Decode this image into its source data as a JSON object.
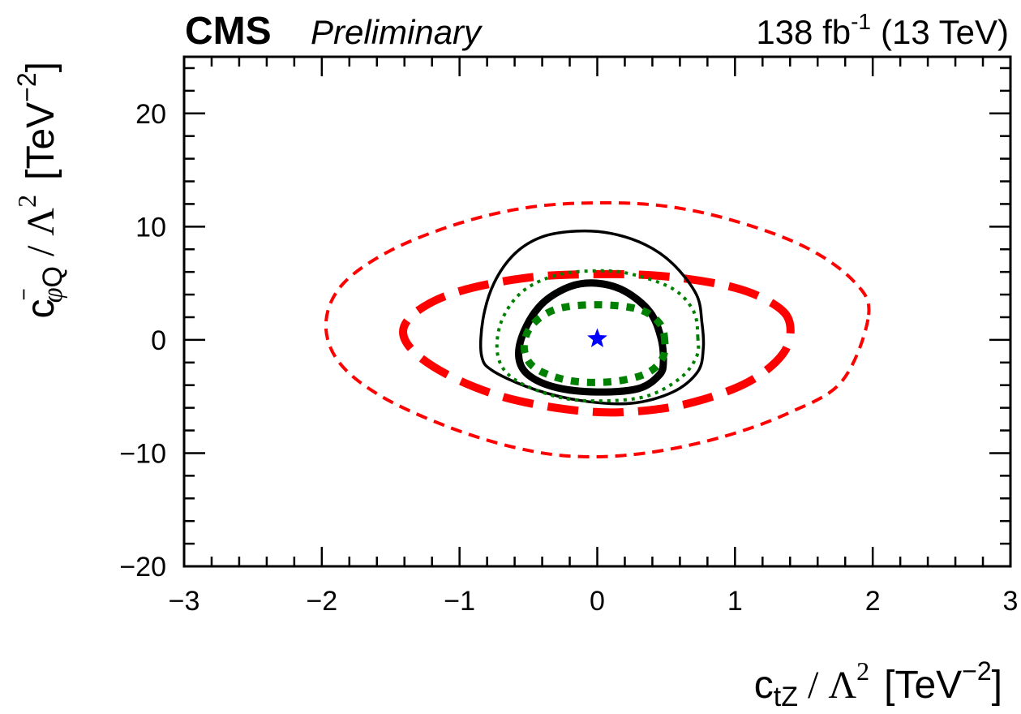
{
  "header": {
    "experiment": "CMS",
    "status": "Preliminary",
    "lumi": "138",
    "lumi_unit": "fb",
    "lumi_exp": "-1",
    "energy": "(13 TeV)"
  },
  "chart_data": {
    "type": "contour",
    "xlim": [
      -3,
      3
    ],
    "ylim": [
      -20,
      25
    ],
    "xticks": [
      -3,
      -2,
      -1,
      0,
      1,
      2,
      3
    ],
    "yticks": [
      -20,
      -10,
      0,
      10,
      20
    ],
    "xtick_labels": [
      "−3",
      "−2",
      "−1",
      "0",
      "1",
      "2",
      "3"
    ],
    "ytick_labels": [
      "−20",
      "−10",
      "0",
      "10",
      "20"
    ],
    "xlabel": {
      "coef": "c",
      "coef_sub": "tZ",
      "slash": "/",
      "lambda": "Λ",
      "lambda_exp": "2",
      "unit_open": "[TeV",
      "unit_exp": "−2",
      "unit_close": "]"
    },
    "ylabel": {
      "coef": "c",
      "coef_bar": "−",
      "coef_sub_phi": "φ",
      "coef_sub_q": "Q",
      "slash": "/",
      "lambda": "Λ",
      "lambda_exp": "2",
      "unit_open": "[TeV",
      "unit_exp": "−2",
      "unit_close": "]"
    },
    "best_fit": {
      "x": 0.0,
      "y": 0.1,
      "color": "#0000ff"
    },
    "contours": [
      {
        "name": "red-dashed-outer",
        "color": "#ff0000",
        "style": "dashed",
        "weight": "thin",
        "points": [
          [
            1.97,
            2.2
          ],
          [
            1.86,
            5.2
          ],
          [
            1.51,
            8.2
          ],
          [
            1.0,
            10.5
          ],
          [
            0.5,
            11.8
          ],
          [
            0.0,
            12.1
          ],
          [
            -0.5,
            11.7
          ],
          [
            -1.0,
            10.3
          ],
          [
            -1.5,
            7.9
          ],
          [
            -1.85,
            4.9
          ],
          [
            -1.97,
            1.5
          ],
          [
            -1.88,
            -1.9
          ],
          [
            -1.58,
            -4.9
          ],
          [
            -1.1,
            -7.6
          ],
          [
            -0.6,
            -9.5
          ],
          [
            -0.15,
            -10.3
          ],
          [
            0.35,
            -10.0
          ],
          [
            0.9,
            -8.6
          ],
          [
            1.4,
            -6.4
          ],
          [
            1.78,
            -3.6
          ],
          [
            1.97,
            2.2
          ]
        ]
      },
      {
        "name": "red-dashed-inner",
        "color": "#ff0000",
        "style": "dashed",
        "weight": "thick",
        "points": [
          [
            1.4,
            1.3
          ],
          [
            1.3,
            3.0
          ],
          [
            1.0,
            4.6
          ],
          [
            0.5,
            5.6
          ],
          [
            0.0,
            5.8
          ],
          [
            -0.5,
            5.5
          ],
          [
            -1.0,
            4.3
          ],
          [
            -1.3,
            2.6
          ],
          [
            -1.41,
            0.7
          ],
          [
            -1.3,
            -1.4
          ],
          [
            -1.0,
            -3.6
          ],
          [
            -0.6,
            -5.3
          ],
          [
            -0.1,
            -6.3
          ],
          [
            0.3,
            -6.3
          ],
          [
            0.7,
            -5.5
          ],
          [
            1.1,
            -3.7
          ],
          [
            1.35,
            -1.2
          ],
          [
            1.4,
            1.3
          ]
        ]
      },
      {
        "name": "black-solid-outer",
        "color": "#000000",
        "style": "solid",
        "weight": "thin",
        "points": [
          [
            0.77,
            -0.7
          ],
          [
            0.76,
            1.5
          ],
          [
            0.72,
            4.0
          ],
          [
            0.55,
            6.7
          ],
          [
            0.35,
            8.4
          ],
          [
            0.1,
            9.4
          ],
          [
            -0.15,
            9.6
          ],
          [
            -0.4,
            9.1
          ],
          [
            -0.6,
            7.6
          ],
          [
            -0.75,
            5.0
          ],
          [
            -0.83,
            1.8
          ],
          [
            -0.84,
            -1.4
          ],
          [
            -0.75,
            -2.8
          ],
          [
            -0.45,
            -4.4
          ],
          [
            -0.1,
            -5.4
          ],
          [
            0.25,
            -5.6
          ],
          [
            0.55,
            -4.6
          ],
          [
            0.73,
            -2.8
          ],
          [
            0.77,
            -0.7
          ]
        ]
      },
      {
        "name": "black-solid-inner",
        "color": "#000000",
        "style": "solid",
        "weight": "thick",
        "points": [
          [
            0.48,
            -1.9
          ],
          [
            0.46,
            0.3
          ],
          [
            0.38,
            2.5
          ],
          [
            0.2,
            4.3
          ],
          [
            0.0,
            5.0
          ],
          [
            -0.2,
            4.7
          ],
          [
            -0.4,
            3.2
          ],
          [
            -0.53,
            0.8
          ],
          [
            -0.57,
            -1.5
          ],
          [
            -0.5,
            -3.1
          ],
          [
            -0.3,
            -4.2
          ],
          [
            0.0,
            -4.6
          ],
          [
            0.3,
            -4.3
          ],
          [
            0.45,
            -3.1
          ],
          [
            0.48,
            -1.9
          ]
        ]
      },
      {
        "name": "green-dotted-outer",
        "color": "#008000",
        "style": "dotted",
        "weight": "thin",
        "points": [
          [
            0.73,
            0.2
          ],
          [
            0.7,
            2.5
          ],
          [
            0.55,
            4.5
          ],
          [
            0.25,
            5.8
          ],
          [
            0.0,
            6.1
          ],
          [
            -0.3,
            5.7
          ],
          [
            -0.55,
            4.2
          ],
          [
            -0.7,
            1.5
          ],
          [
            -0.72,
            -1.5
          ],
          [
            -0.6,
            -3.5
          ],
          [
            -0.3,
            -5.0
          ],
          [
            0.0,
            -5.4
          ],
          [
            0.35,
            -5.0
          ],
          [
            0.6,
            -3.4
          ],
          [
            0.72,
            -1.5
          ],
          [
            0.73,
            0.2
          ]
        ]
      },
      {
        "name": "green-dotted-inner",
        "color": "#008000",
        "style": "dotted",
        "weight": "thick",
        "points": [
          [
            0.49,
            -0.1
          ],
          [
            0.45,
            1.5
          ],
          [
            0.3,
            2.7
          ],
          [
            0.0,
            3.1
          ],
          [
            -0.3,
            2.7
          ],
          [
            -0.48,
            1.2
          ],
          [
            -0.53,
            -0.8
          ],
          [
            -0.45,
            -2.5
          ],
          [
            -0.2,
            -3.6
          ],
          [
            0.1,
            -3.7
          ],
          [
            0.35,
            -3.0
          ],
          [
            0.47,
            -1.7
          ],
          [
            0.49,
            -0.1
          ]
        ]
      }
    ]
  }
}
